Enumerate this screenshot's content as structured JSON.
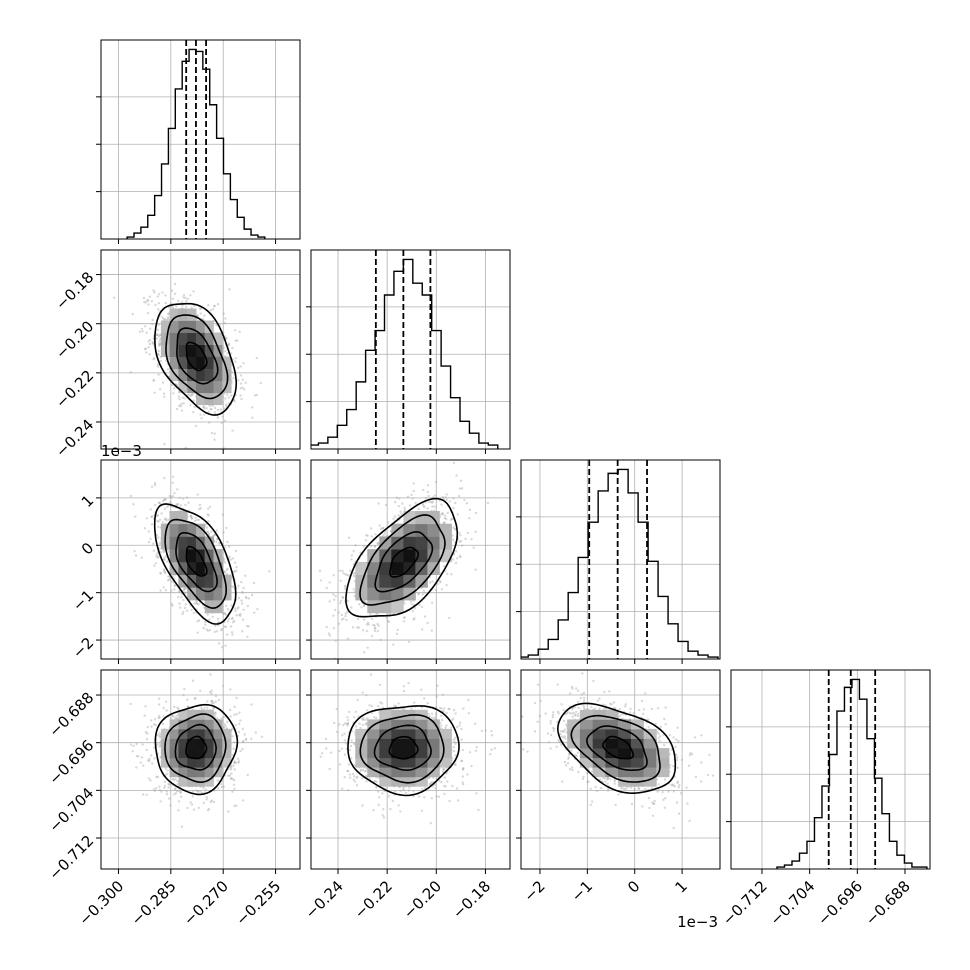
{
  "chart_data": {
    "type": "corner",
    "grid": true,
    "parameters": [
      {
        "range": [
          -0.305,
          -0.248
        ],
        "ticks": [
          -0.3,
          -0.285,
          -0.27,
          -0.255
        ],
        "tick_labels": [
          "−0.300",
          "−0.285",
          "−0.270",
          "−0.255"
        ],
        "offset_text": "",
        "mean": -0.2778,
        "sd": 0.0058,
        "quantiles": [
          -0.2806,
          -0.2778,
          -0.2749
        ],
        "hist_counts": [
          1,
          3,
          6,
          12,
          22,
          38,
          56,
          76,
          90,
          96,
          95,
          86,
          68,
          51,
          33,
          20,
          11,
          5,
          2,
          1
        ]
      },
      {
        "range": [
          -0.251,
          -0.17
        ],
        "ticks": [
          -0.24,
          -0.22,
          -0.2,
          -0.18
        ],
        "tick_labels": [
          "−0.24",
          "−0.22",
          "−0.20",
          "−0.18"
        ],
        "offset_text": "",
        "mean": -0.2134,
        "sd": 0.0113,
        "quantiles": [
          -0.2246,
          -0.2134,
          -0.2024
        ],
        "hist_counts": [
          2,
          3,
          6,
          12,
          20,
          34,
          50,
          60,
          78,
          90,
          96,
          84,
          78,
          60,
          42,
          26,
          14,
          8,
          3,
          2
        ]
      },
      {
        "range": [
          -2.4,
          1.8
        ],
        "ticks": [
          -2,
          -1,
          0,
          1
        ],
        "tick_labels": [
          "−2",
          "−1",
          "0",
          "1"
        ],
        "offset_text": "1e−3",
        "mean": -0.35,
        "sd": 0.62,
        "quantiles": [
          -0.96,
          -0.36,
          0.26
        ],
        "hist_counts": [
          1,
          2,
          5,
          10,
          20,
          34,
          52,
          70,
          86,
          95,
          97,
          85,
          70,
          50,
          32,
          18,
          9,
          4,
          2,
          1
        ]
      },
      {
        "range": [
          -0.7172,
          -0.6838
        ],
        "ticks": [
          -0.712,
          -0.704,
          -0.696,
          -0.688
        ],
        "tick_labels": [
          "−0.712",
          "−0.704",
          "−0.696",
          "−0.688"
        ],
        "offset_text": "",
        "mean": -0.6969,
        "sd": 0.0037,
        "quantiles": [
          -0.7008,
          -0.6971,
          -0.693
        ],
        "hist_counts": [
          1,
          2,
          4,
          8,
          14,
          26,
          42,
          58,
          80,
          92,
          96,
          86,
          66,
          46,
          28,
          14,
          7,
          3,
          1,
          1
        ]
      }
    ],
    "correlations": {
      "1-0": -0.42,
      "2-0": -0.58,
      "2-1": 0.56,
      "3-0": 0.05,
      "3-1": 0.02,
      "3-2": -0.42
    },
    "contour_levels_sigma": [
      0.5,
      1.0,
      1.5,
      2.0
    ]
  }
}
